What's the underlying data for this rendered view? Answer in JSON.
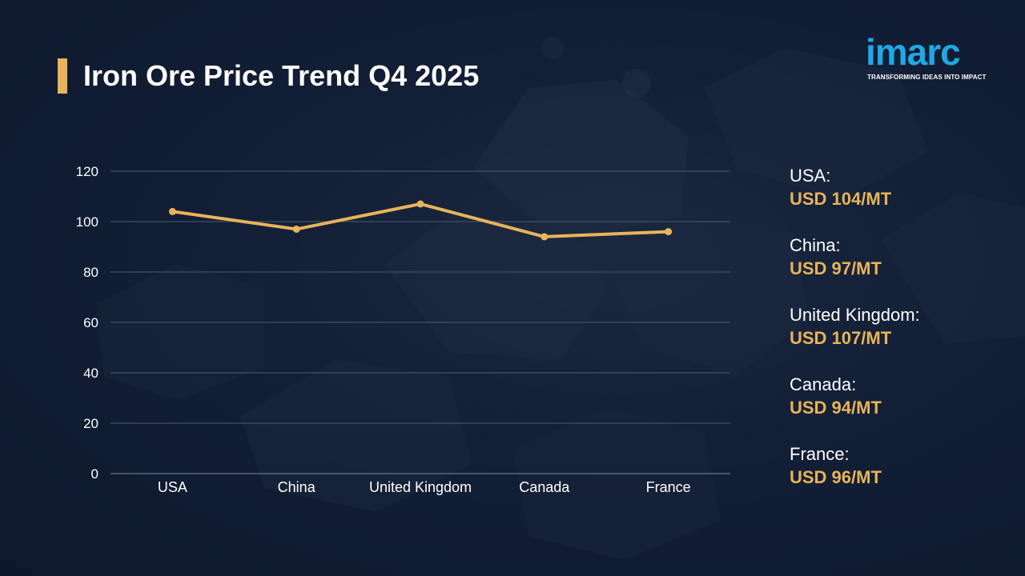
{
  "header": {
    "title": "Iron Ore Price Trend Q4 2025"
  },
  "logo": {
    "wordmark": "imarc",
    "tagline": "TRANSFORMING IDEAS INTO IMPACT"
  },
  "colors": {
    "accent": "#E8B35A",
    "brand": "#1EA8E6",
    "grid": "#4a5a72",
    "text": "#ffffff"
  },
  "chart_data": {
    "type": "line",
    "title": "Iron Ore Price Trend Q4 2025",
    "categories": [
      "USA",
      "China",
      "United Kingdom",
      "Canada",
      "France"
    ],
    "series": [
      {
        "values": [
          104,
          97,
          107,
          94,
          96
        ]
      }
    ],
    "yticks": [
      "0",
      "20",
      "40",
      "60",
      "80",
      "100",
      "120"
    ],
    "ylim": [
      0,
      120
    ],
    "grid": true,
    "xlabel": "",
    "ylabel": ""
  },
  "legend": {
    "items": [
      {
        "label": "USA:",
        "value": "USD 104/MT"
      },
      {
        "label": "China:",
        "value": "USD 97/MT"
      },
      {
        "label": "United Kingdom:",
        "value": "USD 107/MT"
      },
      {
        "label": "Canada:",
        "value": "USD 94/MT"
      },
      {
        "label": "France:",
        "value": "USD 96/MT"
      }
    ]
  }
}
